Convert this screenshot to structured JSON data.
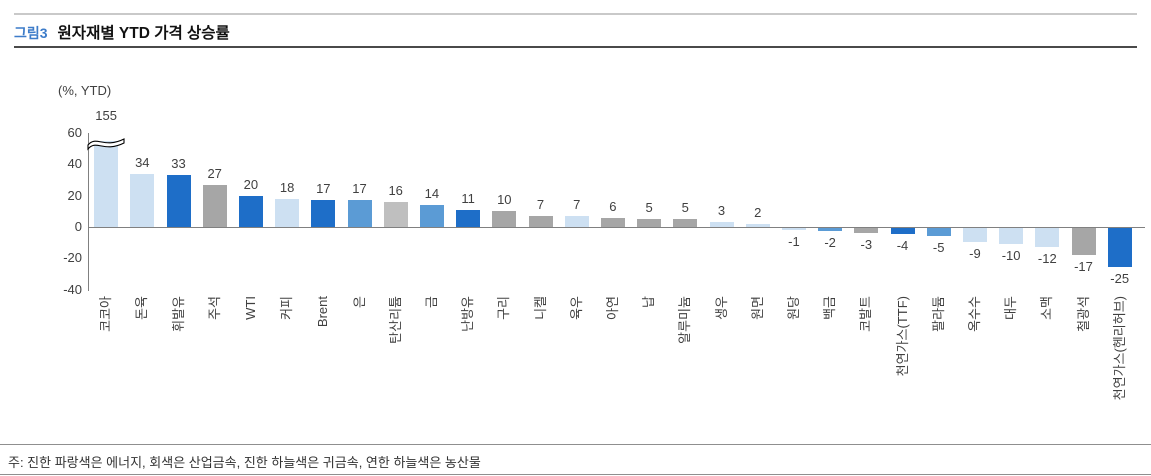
{
  "header": {
    "figure_label": "그림3",
    "title": "원자재별 YTD 가격 상승률"
  },
  "chart_data": {
    "type": "bar",
    "title": "원자재별 YTD 가격 상승률",
    "ylabel": "(%, YTD)",
    "ylim": [
      -40,
      60
    ],
    "y_ticks": [
      60,
      40,
      20,
      0,
      -20,
      -40
    ],
    "grid": false,
    "legend": "none",
    "categories": [
      "코코아",
      "돈육",
      "휘발유",
      "주석",
      "WTI",
      "커피",
      "Brent",
      "은",
      "탄산리튬",
      "금",
      "난방유",
      "구리",
      "니켈",
      "육우",
      "아연",
      "납",
      "알루미늄",
      "생우",
      "원면",
      "원당",
      "백금",
      "코발트",
      "천연가스(TTF)",
      "팔라듐",
      "옥수수",
      "대두",
      "소맥",
      "철광석",
      "천연가스(헨리허브)"
    ],
    "values": [
      155,
      34,
      33,
      27,
      20,
      18,
      17,
      17,
      16,
      14,
      11,
      10,
      7,
      7,
      6,
      5,
      5,
      3,
      2,
      -1,
      -2,
      -3,
      -4,
      -5,
      -9,
      -10,
      -12,
      -17,
      -25
    ],
    "groups": [
      "agricultural",
      "agricultural",
      "energy",
      "industrial_metal",
      "energy",
      "agricultural",
      "energy",
      "precious_metal",
      "battery_metal",
      "precious_metal",
      "energy",
      "industrial_metal",
      "industrial_metal",
      "agricultural",
      "industrial_metal",
      "industrial_metal",
      "industrial_metal",
      "agricultural",
      "agricultural",
      "agricultural",
      "precious_metal",
      "industrial_metal",
      "energy",
      "precious_metal",
      "agricultural",
      "agricultural",
      "agricultural",
      "industrial_metal",
      "energy"
    ],
    "axis_break": {
      "index": 0,
      "displayed_value": 55
    }
  },
  "colors": {
    "energy": "#1e6ec8",
    "industrial_metal": "#a6a6a6",
    "precious_metal": "#5b9bd5",
    "agricultural": "#cde0f2",
    "battery_metal": "#bfbfbf",
    "figure_label": "#3d7cc9",
    "axis_line": "#808080",
    "text": "#404040"
  },
  "note": "주: 진한 파랑색은 에너지, 회색은 산업금속, 진한 하늘색은 귀금속, 연한 하늘색은 농산물"
}
